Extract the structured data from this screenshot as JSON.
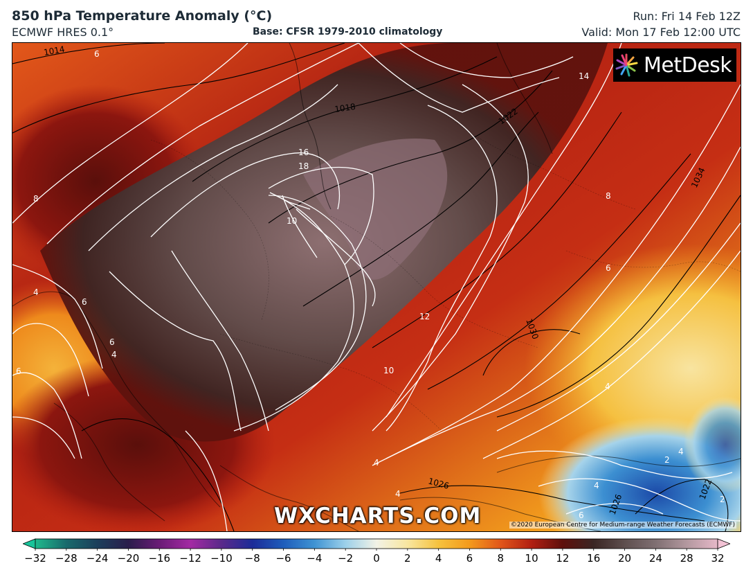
{
  "header": {
    "title": "850 hPa Temperature Anomaly (°C)",
    "model": "ECMWF HRES 0.1°",
    "base": "Base: CFSR 1979-2010 climatology",
    "run": "Run: Fri 14 Feb 12Z",
    "valid": "Valid: Mon 17 Feb 12:00 UTC"
  },
  "map": {
    "brand": "MetDesk",
    "watermark": "WXCHARTS.COM",
    "copyright": "©2020 European Centre for Medium-range Weather Forecasts (ECMWF)",
    "isobar_labels": [
      "1014",
      "1018",
      "1022",
      "1034",
      "1030",
      "1026",
      "1026",
      "1022"
    ],
    "anomaly_labels": [
      "6",
      "14",
      "16",
      "18",
      "8",
      "10",
      "8",
      "6",
      "4",
      "6",
      "4",
      "6",
      "6",
      "12",
      "10",
      "4",
      "4",
      "4",
      "2",
      "4",
      "6",
      "2",
      "4"
    ]
  },
  "colorbar": {
    "ticks": [
      "−32",
      "−28",
      "−24",
      "−20",
      "−16",
      "−12",
      "−10",
      "−8",
      "−6",
      "−4",
      "−2",
      "0",
      "2",
      "4",
      "6",
      "8",
      "10",
      "12",
      "16",
      "20",
      "24",
      "28",
      "32"
    ],
    "colors": [
      "#1fb98c",
      "#196a6c",
      "#1c3f5b",
      "#2a1d4b",
      "#6a1c76",
      "#a32aa3",
      "#5a2a8a",
      "#1c2c98",
      "#1f5dbb",
      "#3f93d3",
      "#9cd0ea",
      "#f2f2e6",
      "#f8e6a0",
      "#f6c23e",
      "#f39a1c",
      "#e1561a",
      "#b11f12",
      "#5e0f0b",
      "#3a2624",
      "#5e4f4e",
      "#7f6f72",
      "#b3989f",
      "#e6b8c8"
    ],
    "extend_low_color": "#19c49a",
    "extend_high_color": "#f2c2d4"
  }
}
